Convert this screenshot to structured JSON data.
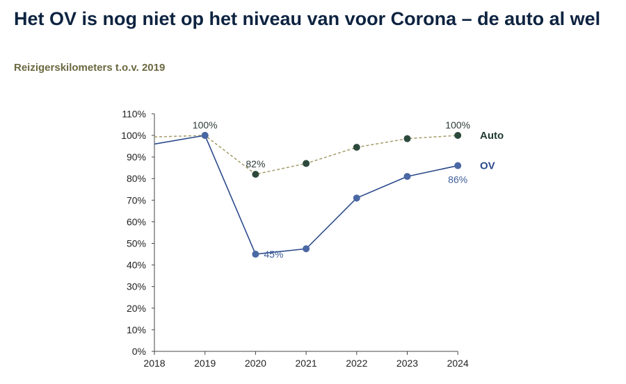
{
  "chart_data": {
    "type": "line",
    "title": "Het OV is nog niet op het niveau van voor Corona – de auto al wel",
    "subtitle": "Reizigerskilometers t.o.v. 2019",
    "xlabel": "",
    "ylabel": "",
    "categories": [
      "2018",
      "2019",
      "2020",
      "2021",
      "2022",
      "2023",
      "2024"
    ],
    "ylim": [
      0,
      110
    ],
    "yticks": [
      "0%",
      "10%",
      "20%",
      "30%",
      "40%",
      "50%",
      "60%",
      "70%",
      "80%",
      "90%",
      "100%",
      "110%"
    ],
    "grid": false,
    "legend": "right",
    "series": [
      {
        "name": "Auto",
        "values": [
          99.3,
          100,
          82,
          87,
          94.5,
          98.5,
          100
        ],
        "line_color": "#a8a070",
        "marker_color": "#2c4a3c",
        "dashed": true,
        "labels": [
          null,
          "100%",
          "82%",
          null,
          null,
          null,
          "100%"
        ]
      },
      {
        "name": "OV",
        "values": [
          96,
          100,
          45,
          47.5,
          71,
          81,
          86
        ],
        "line_color": "#2b4a8c",
        "marker_color": "#4a68a3",
        "dashed": false,
        "labels": [
          null,
          null,
          "45%",
          null,
          null,
          null,
          "86%"
        ]
      }
    ]
  }
}
